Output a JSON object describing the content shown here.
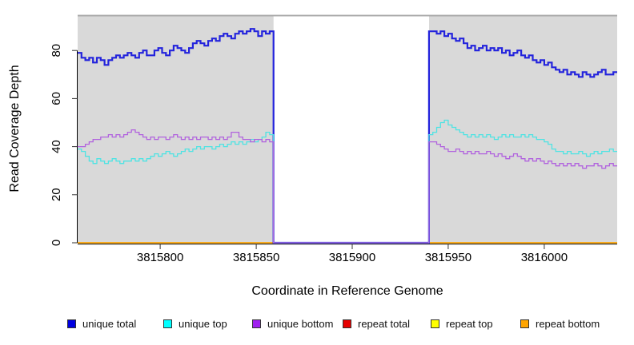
{
  "chart_data": {
    "type": "line",
    "title": "",
    "xlabel": "Coordinate in Reference Genome",
    "ylabel": "Read Coverage Depth",
    "xlim": [
      3815757,
      3816038
    ],
    "ylim": [
      0,
      94.7
    ],
    "grid": false,
    "plot_background": "#d9d9d9",
    "masked_region": {
      "start": 3815859,
      "end": 3815940,
      "fill": "#ffffff",
      "top_border_color": "#999999"
    },
    "x_ticks": [
      {
        "value": 3815800,
        "label": "3815800"
      },
      {
        "value": 3815850,
        "label": "3815850"
      },
      {
        "value": 3815900,
        "label": "3815900"
      },
      {
        "value": 3815950,
        "label": "3815950"
      },
      {
        "value": 3816000,
        "label": "3816000"
      }
    ],
    "y_ticks": [
      {
        "value": 0,
        "label": "0"
      },
      {
        "value": 20,
        "label": "20"
      },
      {
        "value": 40,
        "label": "40"
      },
      {
        "value": 60,
        "label": "60"
      },
      {
        "value": 80,
        "label": "80"
      }
    ],
    "legend_position": "bottom",
    "series": [
      {
        "name": "unique total",
        "line_color": "#2323dc",
        "legend_color": "#0000e0",
        "line_width": 2.2,
        "left_values": [
          79,
          77,
          76,
          77,
          75,
          77,
          76,
          74,
          76,
          77,
          78,
          77,
          78,
          79,
          78,
          77,
          79,
          80,
          78,
          78,
          80,
          81,
          79,
          78,
          80,
          82,
          81,
          80,
          79,
          81,
          83,
          84,
          83,
          82,
          84,
          85,
          84,
          86,
          87,
          86,
          85,
          87,
          88,
          87,
          88,
          89,
          88,
          86,
          88,
          87,
          88
        ],
        "right_values": [
          88,
          88,
          87,
          88,
          86,
          87,
          85,
          84,
          85,
          83,
          81,
          82,
          80,
          81,
          82,
          80,
          81,
          80,
          81,
          79,
          80,
          78,
          79,
          80,
          78,
          77,
          78,
          76,
          75,
          76,
          74,
          75,
          73,
          72,
          71,
          72,
          70,
          71,
          70,
          69,
          71,
          70,
          69,
          70,
          71,
          72,
          70,
          70,
          71
        ],
        "gap_value": 0
      },
      {
        "name": "unique top",
        "line_color": "#4fe3e3",
        "legend_color": "#00ffff",
        "line_width": 1.3,
        "left_values": [
          39,
          38,
          36,
          34,
          33,
          35,
          34,
          33,
          34,
          35,
          34,
          33,
          34,
          34,
          35,
          34,
          35,
          34,
          35,
          36,
          37,
          36,
          37,
          38,
          37,
          36,
          37,
          38,
          39,
          38,
          39,
          40,
          39,
          40,
          40,
          39,
          40,
          41,
          40,
          41,
          42,
          41,
          42,
          41,
          42,
          43,
          42,
          43,
          44,
          46,
          45
        ],
        "right_values": [
          45,
          46,
          48,
          50,
          51,
          49,
          48,
          47,
          46,
          45,
          44,
          45,
          44,
          45,
          44,
          45,
          44,
          43,
          44,
          45,
          44,
          45,
          44,
          44,
          45,
          44,
          45,
          44,
          43,
          43,
          42,
          41,
          39,
          38,
          38,
          37,
          38,
          37,
          37,
          38,
          37,
          36,
          37,
          38,
          37,
          38,
          38,
          39,
          38
        ],
        "gap_value": 0
      },
      {
        "name": "unique bottom",
        "line_color": "#b163de",
        "legend_color": "#a020f0",
        "line_width": 1.3,
        "left_values": [
          40,
          40,
          41,
          42,
          43,
          43,
          44,
          44,
          45,
          44,
          45,
          44,
          45,
          46,
          47,
          46,
          45,
          44,
          43,
          44,
          43,
          44,
          44,
          43,
          44,
          45,
          44,
          43,
          44,
          43,
          44,
          43,
          44,
          44,
          43,
          44,
          43,
          44,
          43,
          44,
          46,
          46,
          44,
          43,
          43,
          42,
          43,
          43,
          42,
          43,
          42
        ],
        "right_values": [
          42,
          42,
          41,
          40,
          39,
          38,
          38,
          39,
          38,
          37,
          38,
          37,
          38,
          37,
          37,
          38,
          37,
          36,
          37,
          36,
          35,
          36,
          37,
          36,
          35,
          34,
          35,
          34,
          35,
          34,
          33,
          34,
          33,
          32,
          33,
          32,
          33,
          32,
          33,
          32,
          31,
          32,
          32,
          33,
          32,
          31,
          32,
          33,
          32
        ],
        "gap_value": 0
      },
      {
        "name": "repeat total",
        "line_color": "#dd1111",
        "legend_color": "#e60000",
        "line_width": 1.3,
        "constant_value": 0
      },
      {
        "name": "repeat top",
        "line_color": "#ffff00",
        "legend_color": "#ffff00",
        "line_width": 1.3,
        "constant_value": 0
      },
      {
        "name": "repeat bottom",
        "line_color": "#ffa500",
        "legend_color": "#ffa500",
        "line_width": 1.6,
        "constant_value": 0
      }
    ]
  }
}
